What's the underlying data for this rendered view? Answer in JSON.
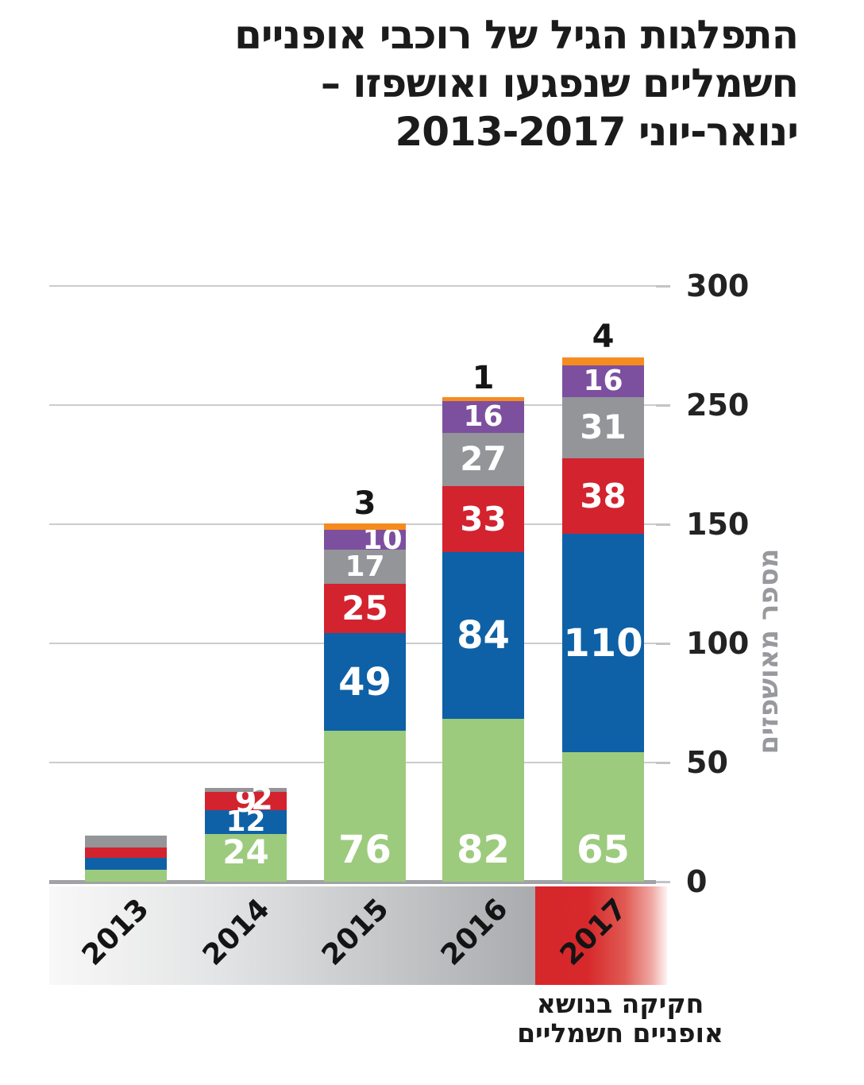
{
  "title": {
    "lines": [
      "התפלגות הגיל של רוכבי אופניים",
      "חשמליים שנפגעו ואושפזו –",
      "ינואר-יוני 2013-2017"
    ]
  },
  "y_axis": {
    "title": "מספר מאושפזים",
    "tick_labels": [
      "300",
      "250",
      "150",
      "100",
      "50",
      "0"
    ]
  },
  "x_axis": {
    "categories": [
      "2013",
      "2014",
      "2015",
      "2016",
      "2017"
    ]
  },
  "annotation": {
    "lines": [
      "חקיקה בנושא",
      "אופניים חשמליים"
    ]
  },
  "colors": {
    "green": "#9ccb7e",
    "blue": "#0e61a6",
    "red": "#d2232f",
    "gray": "#939598",
    "purple": "#7d4f9f",
    "orange": "#f68b1f",
    "grid": "#cbccce",
    "axis_line": "#a0a2a5",
    "band_gray_start": "#f8f8f8",
    "band_gray_end": "#a9abae",
    "band_red": "#d6272b",
    "y_title_gray": "#97999c"
  },
  "chart_data": {
    "type": "bar",
    "subtype": "stacked-vertical",
    "title": "התפלגות הגיל של רוכבי אופניים חשמליים שנפגעו ואושפזו – ינואר-יוני 2013-2017",
    "ylabel": "מספר מאושפזים",
    "categories": [
      "2013",
      "2014",
      "2015",
      "2016",
      "2017"
    ],
    "series": [
      {
        "name": "green",
        "color": "#9ccb7e",
        "values": [
          6,
          24,
          76,
          82,
          65
        ],
        "labels": [
          "",
          "24",
          "76",
          "82",
          "65"
        ]
      },
      {
        "name": "blue",
        "color": "#0e61a6",
        "values": [
          6,
          12,
          49,
          84,
          110
        ],
        "labels": [
          "",
          "12",
          "49",
          "84",
          "110"
        ]
      },
      {
        "name": "red",
        "color": "#d2232f",
        "values": [
          5,
          9,
          25,
          33,
          38
        ],
        "labels": [
          "",
          "9",
          "25",
          "33",
          "38"
        ]
      },
      {
        "name": "gray",
        "color": "#939598",
        "values": [
          6,
          2,
          17,
          27,
          31
        ],
        "labels": [
          "",
          "2",
          "17",
          "27",
          "31"
        ]
      },
      {
        "name": "purple",
        "color": "#7d4f9f",
        "values": [
          0,
          0,
          10,
          16,
          16
        ],
        "labels": [
          "",
          "",
          "10",
          "16",
          "16"
        ]
      },
      {
        "name": "orange",
        "color": "#f68b1f",
        "values": [
          0,
          0,
          3,
          1,
          4
        ],
        "labels_above": [
          "",
          "",
          "3",
          "1",
          "4"
        ]
      }
    ],
    "ylim": [
      0,
      300
    ],
    "ytick_labels_top_to_bottom": [
      "300",
      "250",
      "150",
      "100",
      "50",
      "0"
    ],
    "grid": true,
    "legend": false,
    "annotation": "חקיקה בנושא אופניים חשמליים"
  }
}
